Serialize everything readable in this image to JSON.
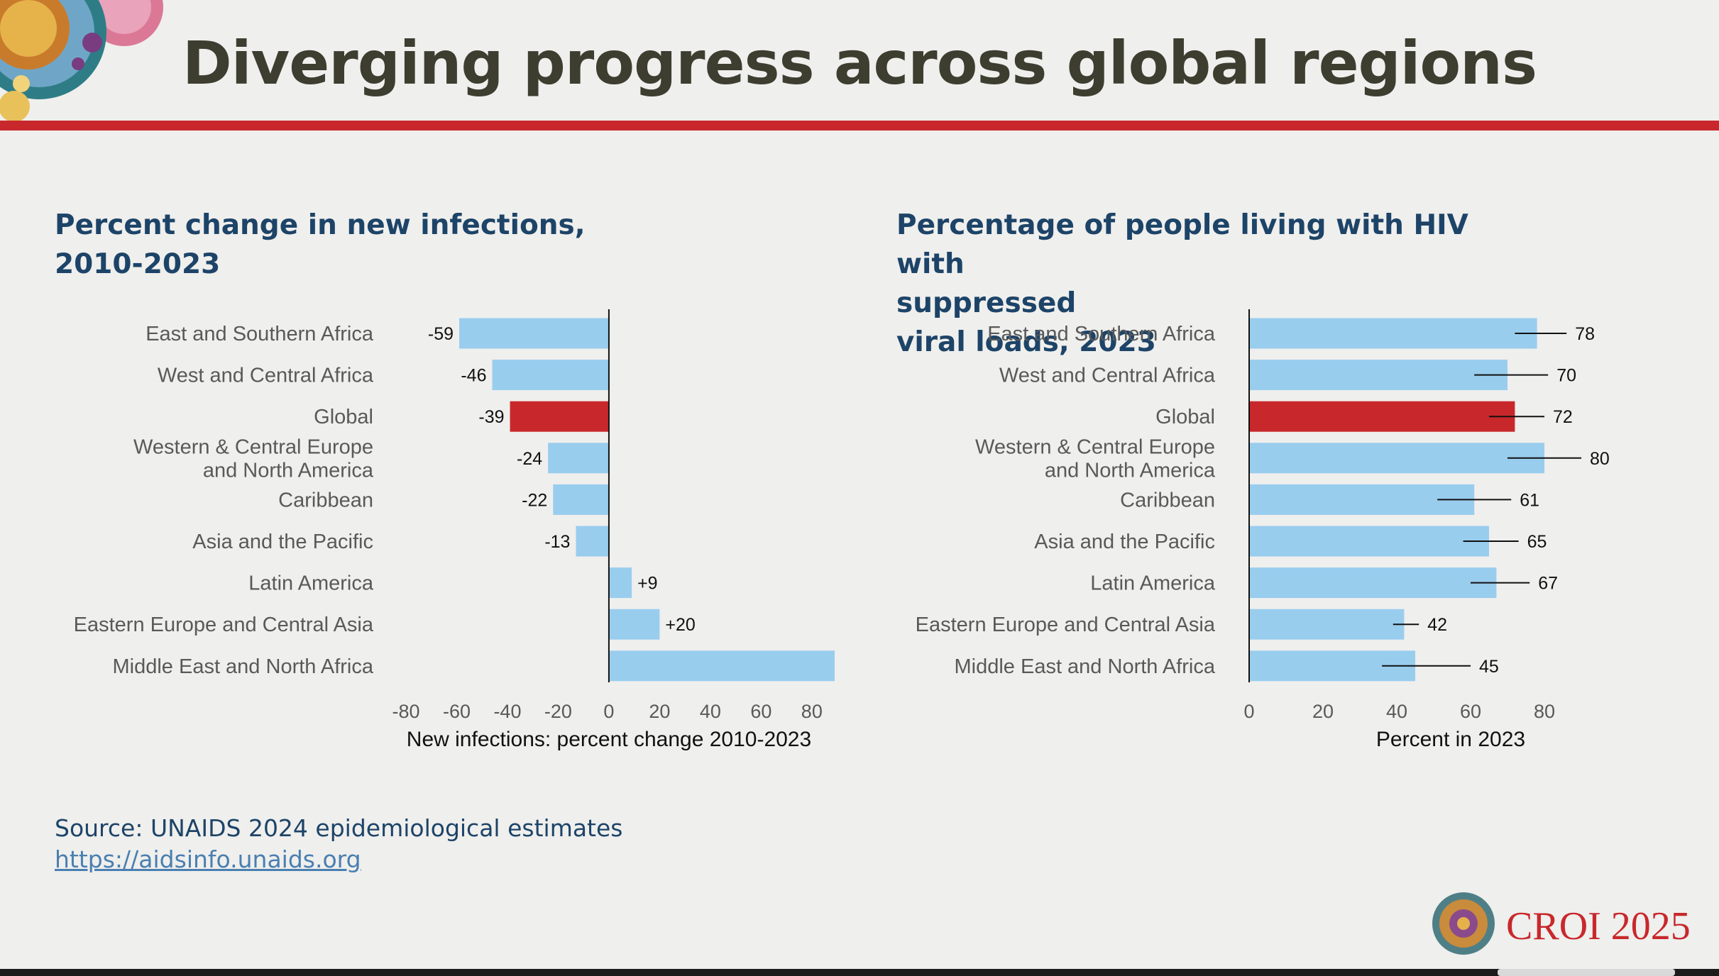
{
  "slide": {
    "title": "Diverging progress across global regions",
    "accent_color": "#c8282c",
    "title_color": "#3d3d30",
    "source": "Source: UNAIDS 2024 epidemiological estimates",
    "source_link": "https://aidsinfo.unaids.org",
    "logo_text": "CROI 2025"
  },
  "chart_data": [
    {
      "type": "bar",
      "orientation": "horizontal",
      "title_lines": [
        "Percent change in new infections,",
        "2010-2023"
      ],
      "xlabel": "New infections: percent change 2010-2023",
      "categories": [
        [
          "East and Southern Africa"
        ],
        [
          "West and Central Africa"
        ],
        [
          "Global"
        ],
        [
          "Western & Central Europe",
          "and North America"
        ],
        [
          "Caribbean"
        ],
        [
          "Asia and the Pacific"
        ],
        [
          "Latin America"
        ],
        [
          "Eastern Europe and Central Asia"
        ],
        [
          "Middle East and North Africa"
        ]
      ],
      "values": [
        -59,
        -46,
        -39,
        -24,
        -22,
        -13,
        9,
        20,
        89
      ],
      "value_labels": [
        "-59",
        "-46",
        "-39",
        "-24",
        "-22",
        "-13",
        "+9",
        "+20",
        ""
      ],
      "highlight_index": 2,
      "xlim": [
        -80,
        89
      ],
      "ticks": [
        -80,
        -60,
        -40,
        -20,
        0,
        20,
        40,
        60,
        80
      ],
      "bar_color": "#99cdee",
      "highlight_color": "#c8282c"
    },
    {
      "type": "bar",
      "orientation": "horizontal",
      "title_lines": [
        "Percentage of people living with HIV with",
        "suppressed",
        "viral loads, 2023"
      ],
      "xlabel": "Percent in 2023",
      "categories": [
        [
          "East and Southern Africa"
        ],
        [
          "West and Central Africa"
        ],
        [
          "Global"
        ],
        [
          "Western & Central Europe",
          "and North America"
        ],
        [
          "Caribbean"
        ],
        [
          "Asia and the Pacific"
        ],
        [
          "Latin America"
        ],
        [
          "Eastern Europe and Central Asia"
        ],
        [
          "Middle East and North Africa"
        ]
      ],
      "values": [
        78,
        70,
        72,
        80,
        61,
        65,
        67,
        42,
        45
      ],
      "value_labels": [
        "78",
        "70",
        "72",
        "80",
        "61",
        "65",
        "67",
        "42",
        "45"
      ],
      "error_ranges": [
        [
          72,
          86
        ],
        [
          61,
          81
        ],
        [
          65,
          80
        ],
        [
          70,
          90
        ],
        [
          51,
          71
        ],
        [
          58,
          73
        ],
        [
          60,
          76
        ],
        [
          39,
          46
        ],
        [
          36,
          60
        ]
      ],
      "highlight_index": 2,
      "xlim": [
        0,
        100
      ],
      "ticks": [
        0,
        20,
        40,
        60,
        80
      ],
      "bar_color": "#99cdee",
      "highlight_color": "#c8282c"
    }
  ]
}
